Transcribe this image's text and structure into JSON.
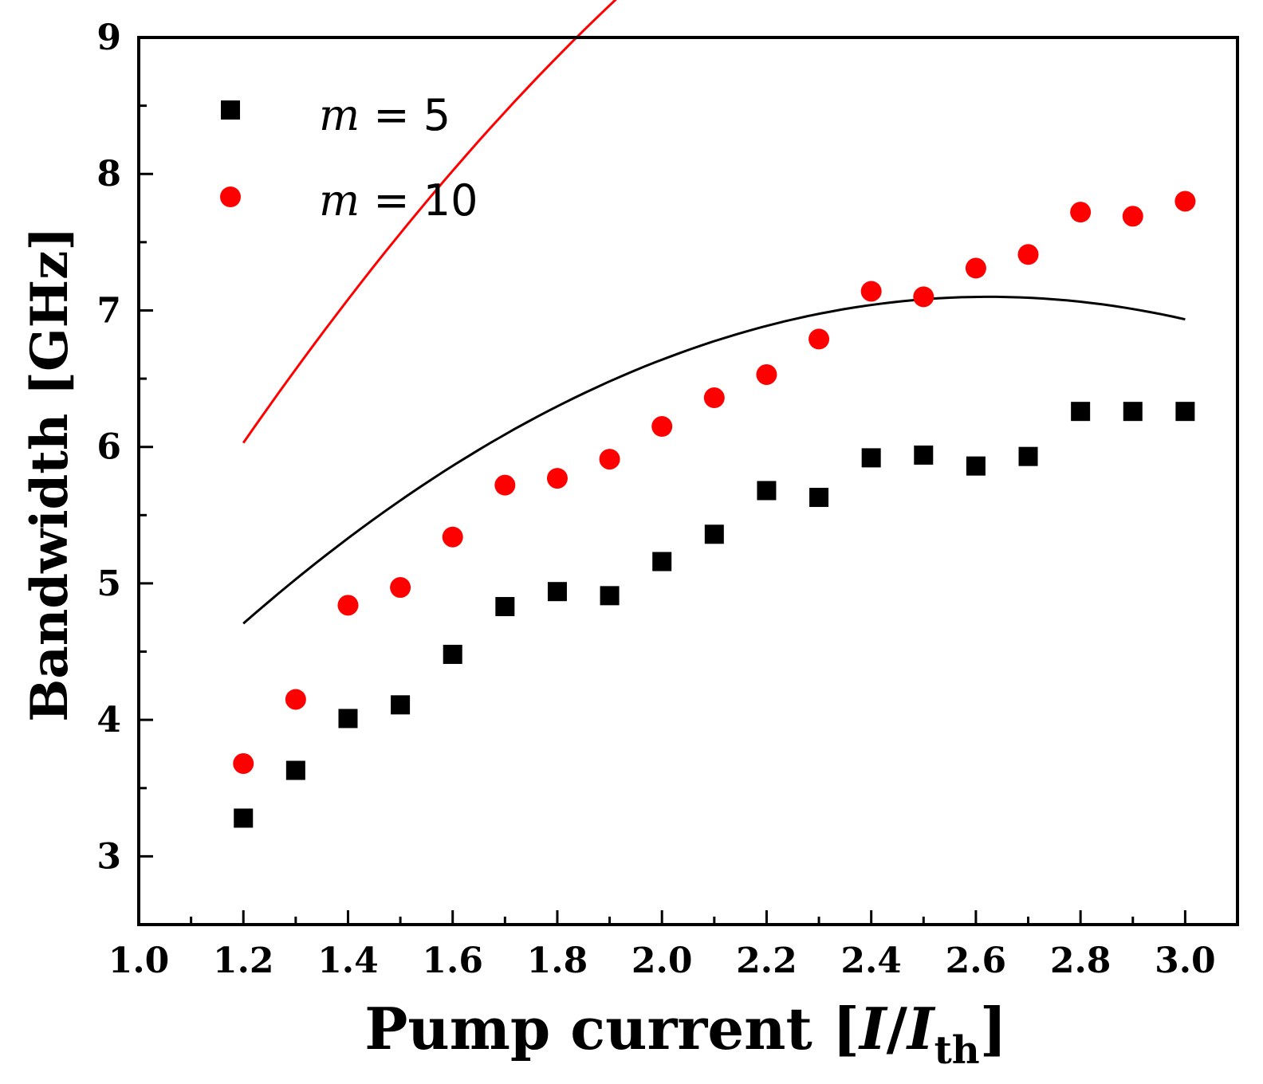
{
  "chart_data": {
    "type": "scatter",
    "xlabel": "Pump current",
    "xlabel_bracket_open": "[",
    "xlabel_var": "I",
    "xlabel_sep": "/",
    "xlabel_var2": "I",
    "xlabel_sub": "th",
    "xlabel_bracket_close": "]",
    "ylabel": "Bandwidth [GHz]",
    "xlim": [
      1.0,
      3.1
    ],
    "ylim": [
      2.5,
      9.0
    ],
    "xticks": [
      "1.0",
      "1.2",
      "1.4",
      "1.6",
      "1.8",
      "2.0",
      "2.2",
      "2.4",
      "2.6",
      "2.8",
      "3.0"
    ],
    "yticks": [
      "3",
      "4",
      "5",
      "6",
      "7",
      "8",
      "9"
    ],
    "series": [
      {
        "name": "m = 5",
        "legend_var": "m",
        "legend_rest": " = 5",
        "marker": "square",
        "color": "#000000",
        "x": [
          1.2,
          1.3,
          1.4,
          1.5,
          1.6,
          1.7,
          1.8,
          1.9,
          2.0,
          2.1,
          2.2,
          2.3,
          2.4,
          2.5,
          2.6,
          2.7,
          2.8,
          2.9,
          3.0
        ],
        "y": [
          3.28,
          3.63,
          4.01,
          4.11,
          4.48,
          4.83,
          4.94,
          4.91,
          5.16,
          5.36,
          5.68,
          5.63,
          5.92,
          5.94,
          5.86,
          5.93,
          6.26,
          6.26,
          6.26
        ],
        "fit": {
          "x": [
            1.2,
            3.0
          ],
          "coeffs": [
            -1.0225,
            6.188,
            -1.1786
          ]
        }
      },
      {
        "name": "m = 10",
        "legend_var": "m",
        "legend_rest": " = 10",
        "marker": "circle",
        "color": "#ff0000",
        "x": [
          1.2,
          1.3,
          1.4,
          1.5,
          1.6,
          1.7,
          1.8,
          1.9,
          2.0,
          2.1,
          2.2,
          2.3,
          2.4,
          2.5,
          2.6,
          2.7,
          2.8,
          2.9,
          3.0
        ],
        "y": [
          3.68,
          4.15,
          4.84,
          4.97,
          5.34,
          5.72,
          5.77,
          5.91,
          6.15,
          6.36,
          6.53,
          6.79,
          7.14,
          7.1,
          7.31,
          7.41,
          7.72,
          7.69,
          7.8
        ],
        "fit": {
          "x": [
            1.2,
            3.0
          ],
          "coeffs": [
            -2.5325,
            8.7495,
            -1.3452
          ]
        }
      }
    ]
  }
}
